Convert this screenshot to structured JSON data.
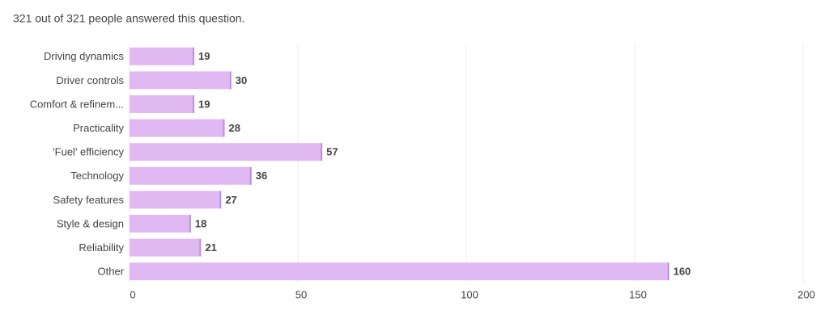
{
  "chart_data": {
    "type": "bar",
    "orientation": "horizontal",
    "subtitle": "321 out of 321 people answered this question.",
    "categories": [
      "Driving dynamics",
      "Driver controls",
      "Comfort & refinem...",
      "Practicality",
      "'Fuel' efficiency",
      "Technology",
      "Safety features",
      "Style & design",
      "Reliability",
      "Other"
    ],
    "values": [
      19,
      30,
      19,
      28,
      57,
      36,
      27,
      18,
      21,
      160
    ],
    "color": "#e0b8f2",
    "edge_color": "#c48ade",
    "value_label_color": "#b36ccc",
    "xlim": [
      0,
      200
    ],
    "xticks": [
      0,
      50,
      100,
      150,
      200
    ],
    "grid": true
  }
}
